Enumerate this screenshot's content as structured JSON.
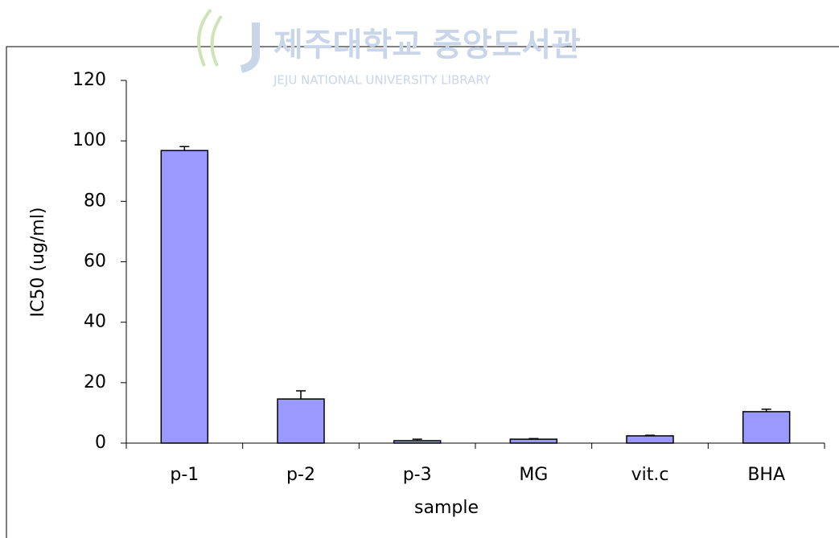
{
  "watermark": {
    "title": "제주대학교 중앙도서관",
    "subtitle": "JEJU NATIONAL UNIVERSITY LIBRARY"
  },
  "chart_data": {
    "type": "bar",
    "x_label": "sample",
    "y_label": "IC50 (ug/ml)",
    "categories": [
      "p-1",
      "p-2",
      "p-3",
      "MG",
      "vit.c",
      "BHA"
    ],
    "values": [
      96.8,
      14.6,
      0.8,
      1.3,
      2.4,
      10.4
    ],
    "errors": [
      1.3,
      2.7,
      0.5,
      0.2,
      0.2,
      0.8
    ],
    "color": "#9999ff",
    "ylim": [
      0,
      120
    ],
    "yticks": [
      0,
      20,
      40,
      60,
      80,
      100,
      120
    ],
    "grid": false
  }
}
